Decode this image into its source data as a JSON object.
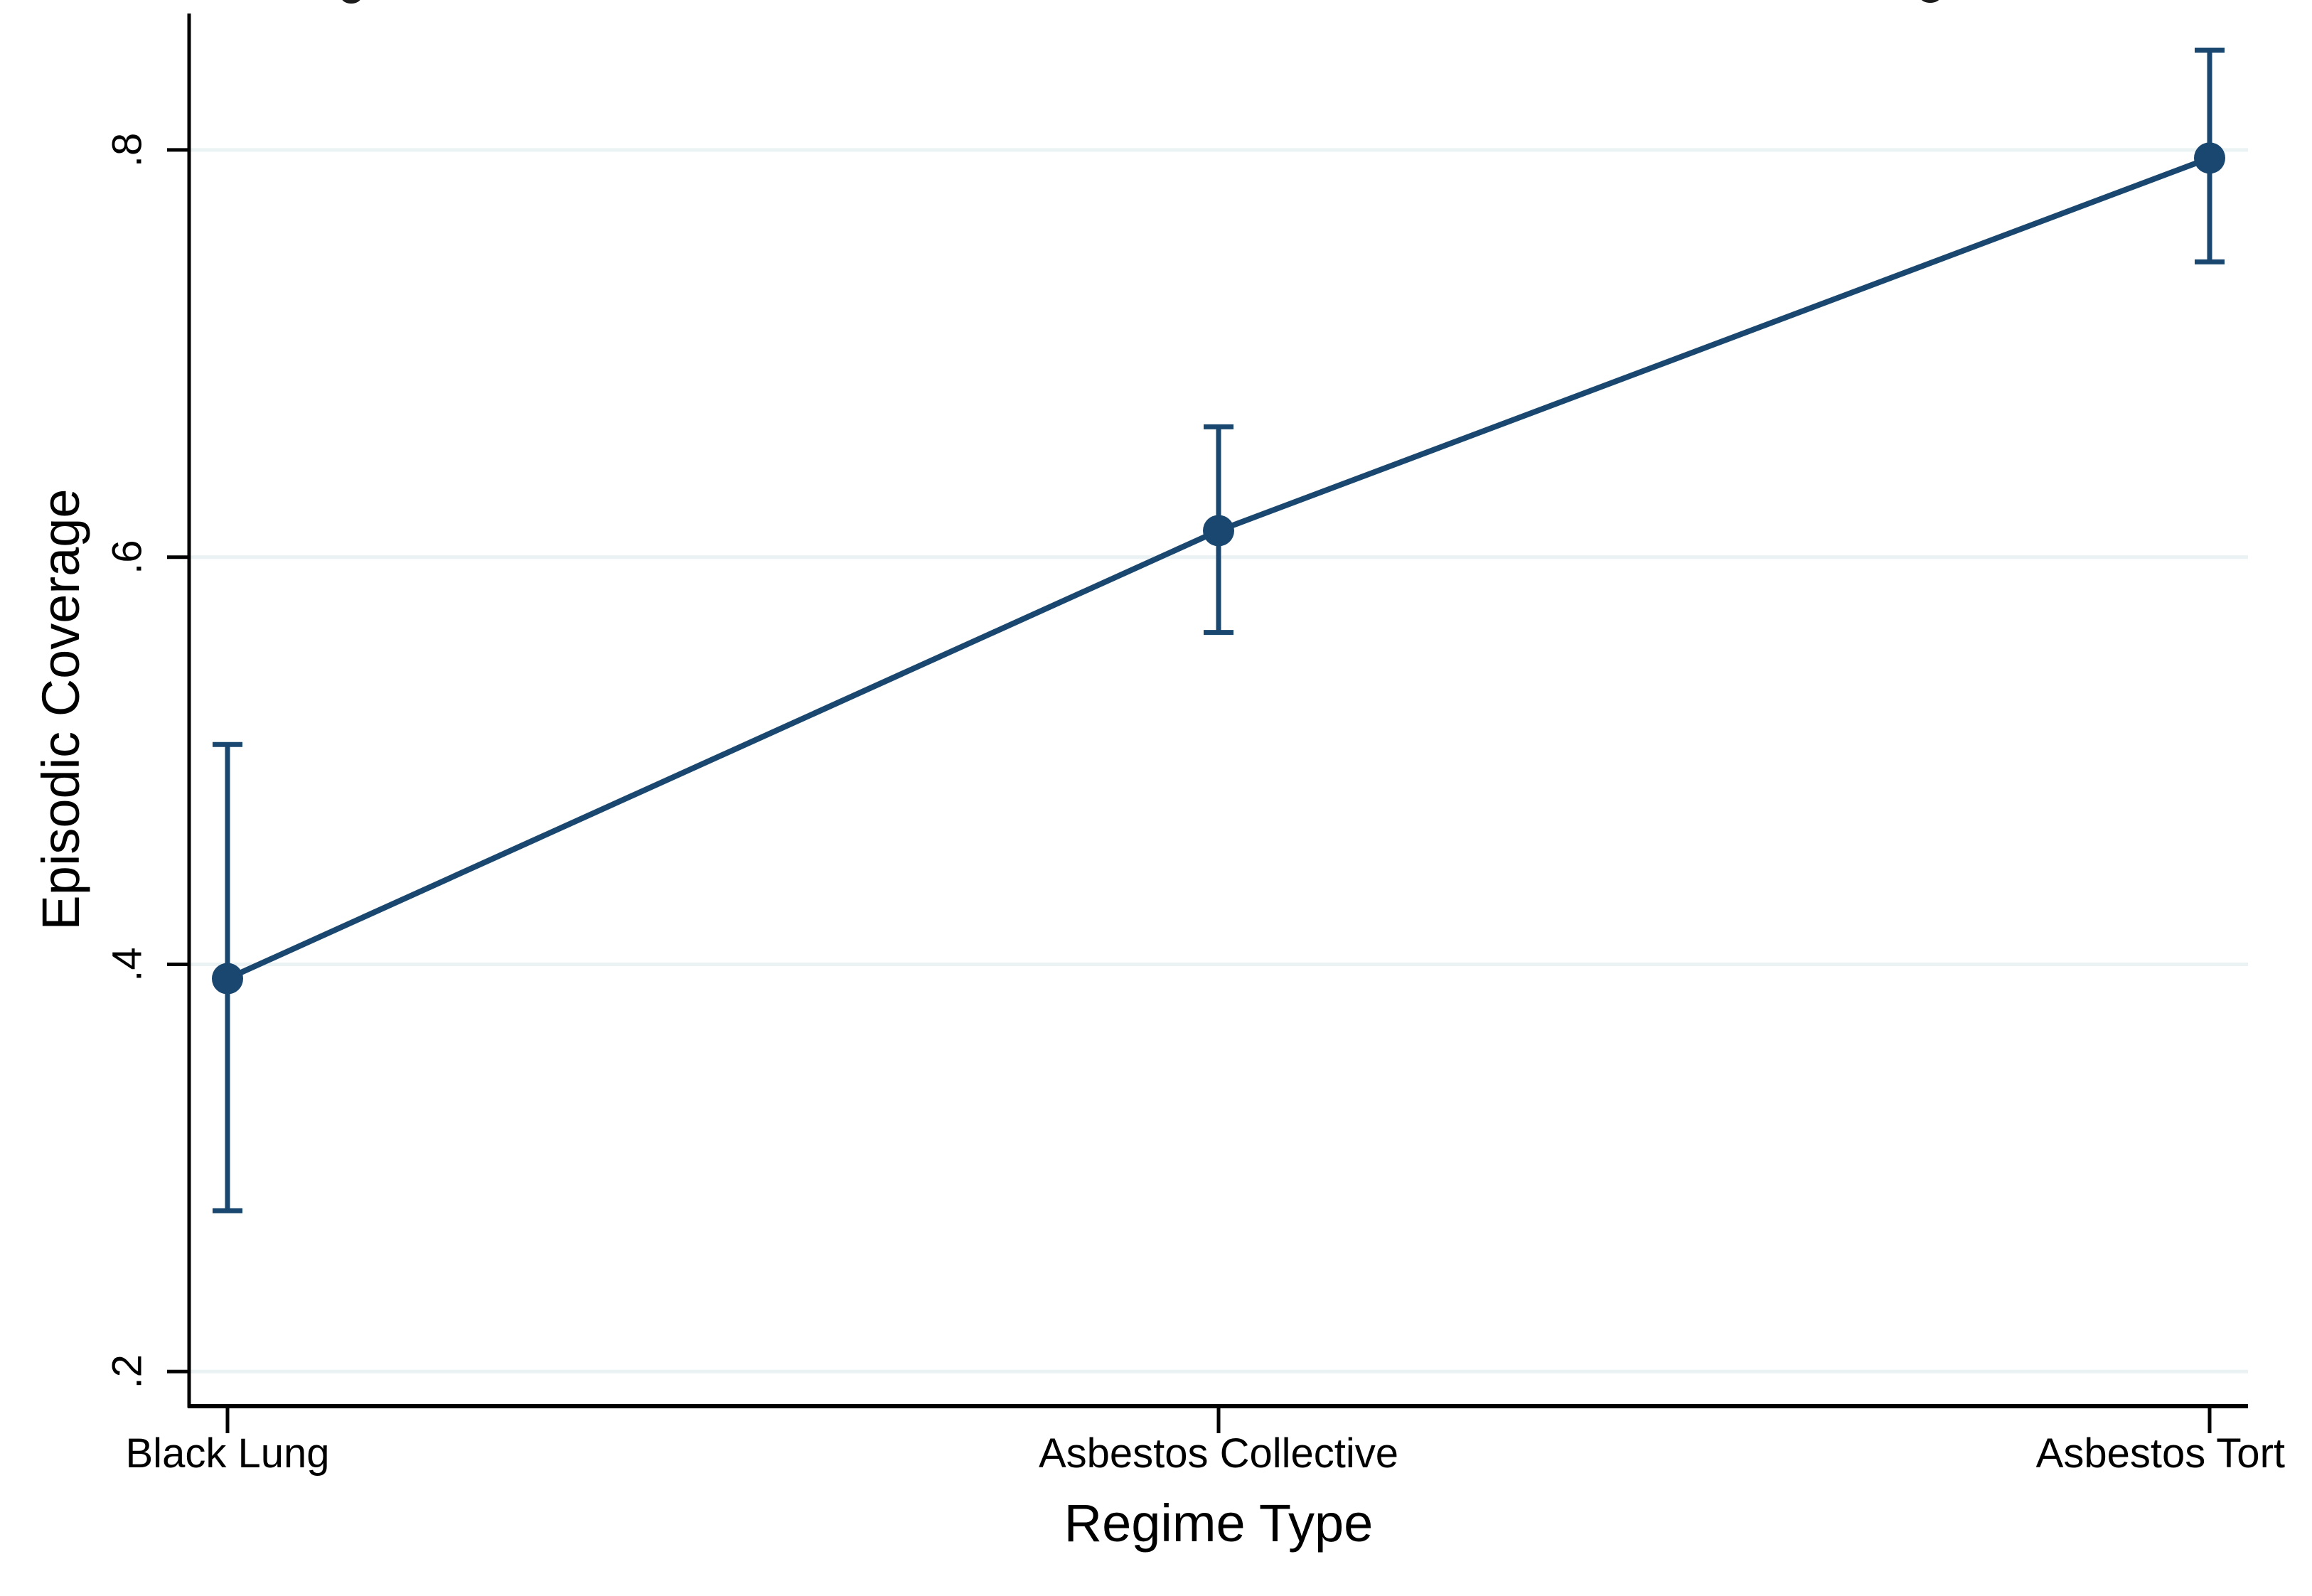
{
  "chart_data": {
    "type": "line",
    "subtype": "point-estimates-with-confidence-intervals",
    "title": "",
    "xlabel": "Regime Type",
    "ylabel": "Episodic Coverage",
    "categories": [
      "Black Lung",
      "Asbestos Collective",
      "Asbestos Tort"
    ],
    "series": [
      {
        "name": "Episodic Coverage",
        "values": [
          0.393,
          0.613,
          0.796
        ],
        "ci_low": [
          0.279,
          0.563,
          0.745
        ],
        "ci_high": [
          0.508,
          0.664,
          0.849
        ]
      }
    ],
    "y_ticks": [
      0.2,
      0.4,
      0.6,
      0.8
    ],
    "y_tick_labels": [
      ".2",
      ".4",
      ".6",
      ".8"
    ],
    "ylim": [
      0.183,
      0.867
    ],
    "grid": "horizontal",
    "legend": "none",
    "marker": "filled-circle",
    "colors": {
      "series": "#1A476F",
      "gridline": "#EAF2F3",
      "axis": "#000000",
      "text": "#000000",
      "background": "#FFFFFF"
    }
  }
}
